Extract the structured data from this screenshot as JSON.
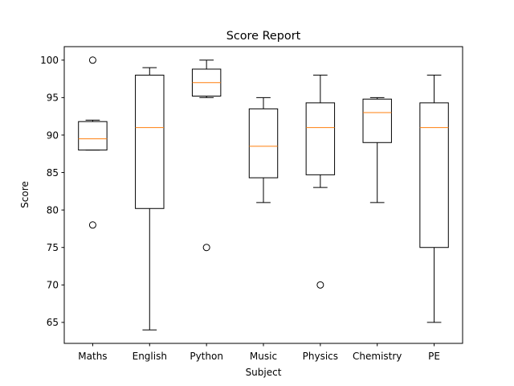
{
  "chart_data": {
    "type": "box",
    "title": "Score Report",
    "xlabel": "Subject",
    "ylabel": "Score",
    "ylim": [
      62.2,
      101.8
    ],
    "yticks": [
      65,
      70,
      75,
      80,
      85,
      90,
      95,
      100
    ],
    "grid": false,
    "legend": "none",
    "colors": {
      "box": "#000000",
      "median": "#ff7f0e",
      "background": "#ffffff"
    },
    "categories": [
      "Maths",
      "English",
      "Python",
      "Music",
      "Physics",
      "Chemistry",
      "PE"
    ],
    "boxes": [
      {
        "category": "Maths",
        "whisker_low": 88,
        "q1": 88,
        "median": 89.5,
        "q3": 91.8,
        "whisker_high": 92,
        "outliers": [
          78,
          100
        ]
      },
      {
        "category": "English",
        "whisker_low": 64,
        "q1": 80.2,
        "median": 91,
        "q3": 98,
        "whisker_high": 99,
        "outliers": []
      },
      {
        "category": "Python",
        "whisker_low": 95,
        "q1": 95.2,
        "median": 97,
        "q3": 98.8,
        "whisker_high": 100,
        "outliers": [
          75
        ]
      },
      {
        "category": "Music",
        "whisker_low": 81,
        "q1": 84.3,
        "median": 88.5,
        "q3": 93.5,
        "whisker_high": 95,
        "outliers": []
      },
      {
        "category": "Physics",
        "whisker_low": 83,
        "q1": 84.7,
        "median": 91,
        "q3": 94.3,
        "whisker_high": 98,
        "outliers": [
          70
        ]
      },
      {
        "category": "Chemistry",
        "whisker_low": 81,
        "q1": 89,
        "median": 93,
        "q3": 94.8,
        "whisker_high": 95,
        "outliers": []
      },
      {
        "category": "PE",
        "whisker_low": 65,
        "q1": 75,
        "median": 91,
        "q3": 94.3,
        "whisker_high": 98,
        "outliers": []
      }
    ]
  }
}
